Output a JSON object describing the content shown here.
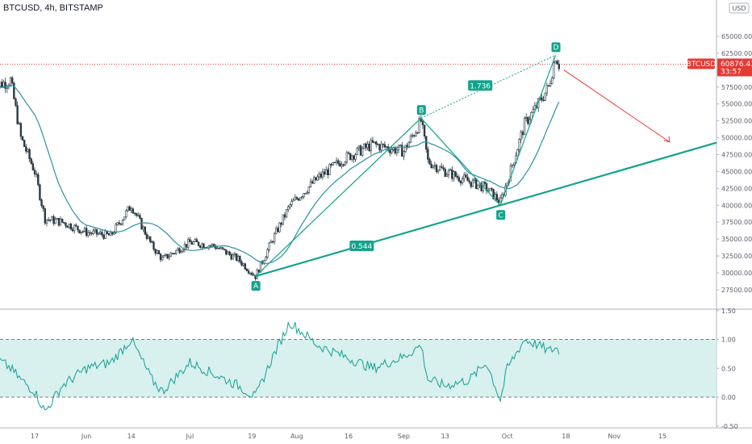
{
  "header": {
    "title": "BTCUSD, 4h, BITSTAMP"
  },
  "currency_label": "USD",
  "colors": {
    "candle": "#2b3a42",
    "ma": "#2e8fa3",
    "pattern": "#13a38d",
    "forecast": "#e53935",
    "price_tag": "#e53935",
    "osc_fill": "#d8f0ee",
    "osc_line": "#14a092"
  },
  "price_axis": {
    "ticks": [
      "65000.00",
      "62500.00",
      "60000.00",
      "57500.00",
      "55000.00",
      "52500.00",
      "50000.00",
      "47500.00",
      "45000.00",
      "42500.00",
      "40000.00",
      "37500.00",
      "35000.00",
      "32500.00",
      "30000.00",
      "27500.00"
    ],
    "current_symbol": "BTCUSD",
    "current_price": "60876.43",
    "countdown": "33:57"
  },
  "osc_axis": {
    "ticks": [
      "1.50",
      "1.00",
      "0.50",
      "0.00",
      "-0.50"
    ]
  },
  "time_axis": {
    "labels": [
      "17",
      "Jun",
      "14",
      "Jul",
      "19",
      "Aug",
      "16",
      "Sep",
      "13",
      "Oct",
      "18",
      "Nov",
      "15"
    ]
  },
  "pattern": {
    "points": [
      {
        "label": "A",
        "date": "Jul 20",
        "price": 29500
      },
      {
        "label": "B",
        "date": "Sep 6",
        "price": 52900
      },
      {
        "label": "C",
        "date": "Sep 29",
        "price": 40000
      },
      {
        "label": "D",
        "date": "Oct 15",
        "price": 62200
      }
    ],
    "ratios": [
      "1.736",
      "0.544"
    ]
  },
  "chart_data": [
    {
      "type": "line",
      "series": [
        {
          "dates": [
            "May 5",
            "May 10",
            "May 13",
            "May 17",
            "May 20",
            "May 25",
            "Jun 1",
            "Jun 8",
            "Jun 14",
            "Jun 20",
            "Jun 23",
            "Jul 1",
            "Jul 8",
            "Jul 15",
            "Jul 20",
            "Jul 25",
            "Jul 30",
            "Aug 7",
            "Aug 15",
            "Aug 23",
            "Sep 1",
            "Sep 6",
            "Sep 8",
            "Sep 13",
            "Sep 20",
            "Sep 25",
            "Sep 29",
            "Oct 1",
            "Oct 6",
            "Oct 10",
            "Oct 13",
            "Oct 15",
            "Oct 16"
          ],
          "values": [
            57500,
            58500,
            50000,
            45000,
            38000,
            37500,
            36000,
            35500,
            40000,
            34000,
            32000,
            34500,
            34000,
            32000,
            29500,
            35000,
            40000,
            44000,
            47000,
            49000,
            48000,
            52500,
            46500,
            45000,
            43500,
            42500,
            40500,
            43500,
            52000,
            55000,
            57500,
            62200,
            60876
          ]
        }
      ],
      "ylim": [
        25000,
        66000
      ]
    },
    {
      "type": "line",
      "series": [
        {
          "dates": [
            "May 5",
            "May 10",
            "May 13",
            "May 17",
            "May 20",
            "May 25",
            "Jun 1",
            "Jun 8",
            "Jun 14",
            "Jun 20",
            "Jun 23",
            "Jul 1",
            "Jul 8",
            "Jul 15",
            "Jul 20",
            "Jul 25",
            "Jul 30",
            "Aug 7",
            "Aug 15",
            "Aug 23",
            "Sep 1",
            "Sep 6",
            "Sep 8",
            "Sep 13",
            "Sep 20",
            "Sep 25",
            "Sep 29",
            "Oct 1",
            "Oct 6",
            "Oct 10",
            "Oct 13",
            "Oct 15",
            "Oct 16"
          ],
          "values": [
            0.7,
            0.5,
            0.3,
            0.1,
            -0.25,
            0.2,
            0.5,
            0.6,
            1.0,
            0.3,
            0.1,
            0.6,
            0.4,
            0.2,
            0.0,
            0.7,
            1.3,
            0.9,
            0.7,
            0.5,
            0.7,
            0.9,
            0.3,
            0.2,
            0.3,
            0.6,
            -0.05,
            0.5,
            1.0,
            0.9,
            0.8,
            0.85,
            0.8
          ]
        }
      ],
      "ylim": [
        -0.5,
        1.5
      ]
    }
  ]
}
